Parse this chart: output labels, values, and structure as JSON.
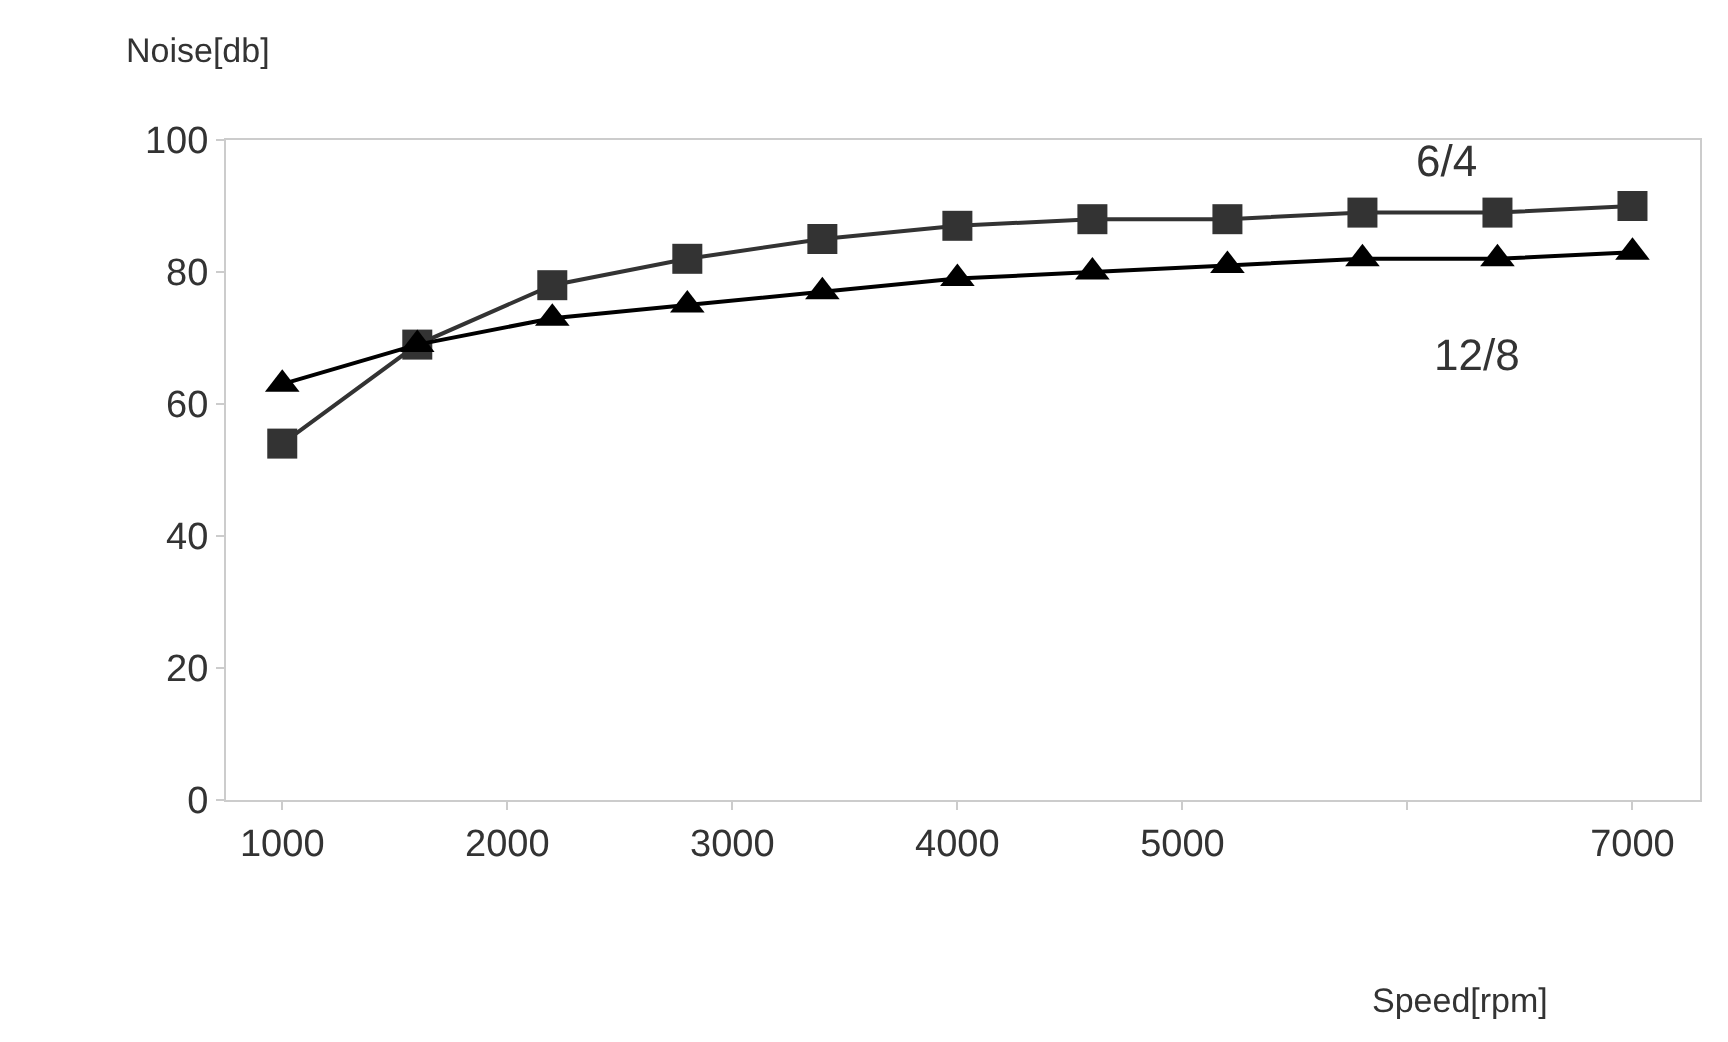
{
  "chart_data": {
    "type": "line",
    "xlabel": "Speed[rpm]",
    "ylabel": "Noise[db]",
    "x": [
      1000,
      1600,
      2200,
      2800,
      3400,
      4000,
      4600,
      5200,
      5800,
      6400,
      7000
    ],
    "series": [
      {
        "name": "6/4",
        "color": "#333333",
        "marker": "square",
        "values": [
          54,
          69,
          78,
          82,
          85,
          87,
          88,
          88,
          89,
          89,
          90
        ]
      },
      {
        "name": "12/8",
        "color": "#000000",
        "marker": "triangle",
        "values": [
          63,
          69,
          73,
          75,
          77,
          79,
          80,
          81,
          82,
          82,
          83
        ]
      }
    ],
    "xlim": [
      750,
      7300
    ],
    "xticks": [
      1000,
      2000,
      3000,
      4000,
      5000,
      {
        "value": 6000,
        "label": null
      },
      7000
    ],
    "ylim": [
      0,
      100
    ],
    "yticks": [
      0,
      20,
      40,
      60,
      80,
      100
    ],
    "line_style": "solid"
  }
}
